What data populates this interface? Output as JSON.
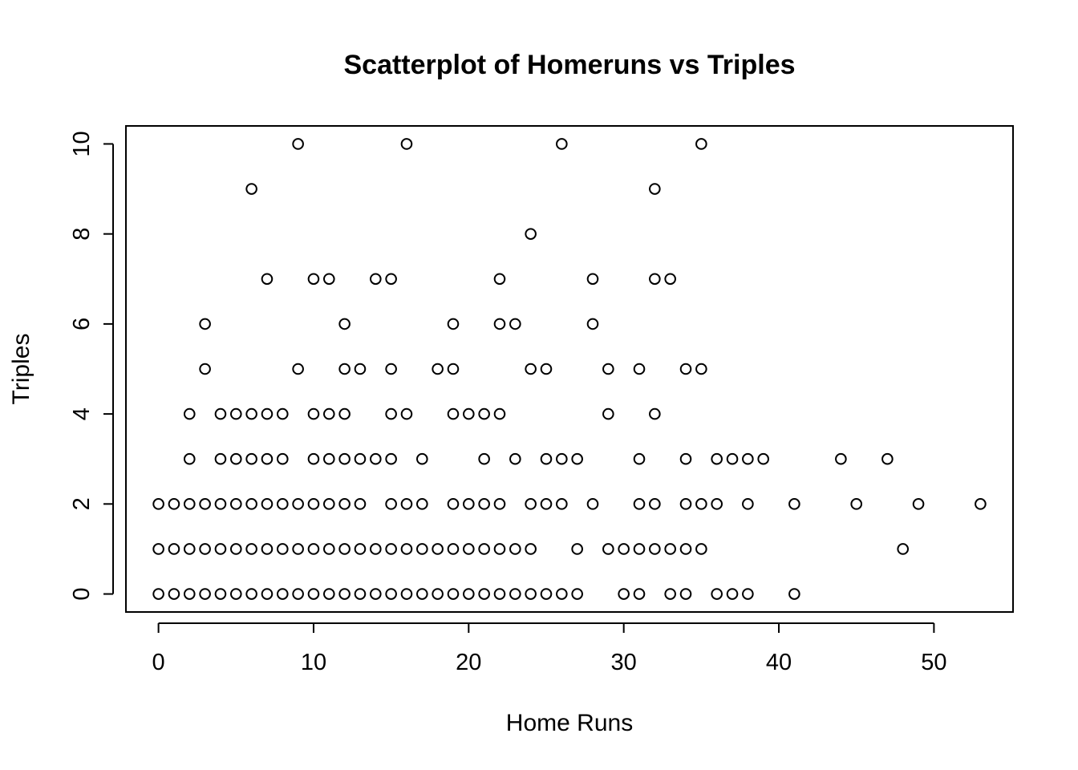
{
  "chart_data": {
    "type": "scatter",
    "title": "Scatterplot of Homeruns vs Triples",
    "xlabel": "Home Runs",
    "ylabel": "Triples",
    "xlim": [
      -2.1,
      55.1
    ],
    "ylim": [
      -0.4,
      10.4
    ],
    "xticks": [
      0,
      10,
      20,
      30,
      40,
      50
    ],
    "yticks": [
      0,
      2,
      4,
      6,
      8,
      10
    ],
    "grid": false,
    "legend": "none",
    "marker": "open-circle",
    "series": [
      {
        "points": [
          [
            0,
            0
          ],
          [
            1,
            0
          ],
          [
            2,
            0
          ],
          [
            3,
            0
          ],
          [
            4,
            0
          ],
          [
            5,
            0
          ],
          [
            6,
            0
          ],
          [
            7,
            0
          ],
          [
            8,
            0
          ],
          [
            9,
            0
          ],
          [
            10,
            0
          ],
          [
            11,
            0
          ],
          [
            12,
            0
          ],
          [
            13,
            0
          ],
          [
            14,
            0
          ],
          [
            15,
            0
          ],
          [
            16,
            0
          ],
          [
            17,
            0
          ],
          [
            18,
            0
          ],
          [
            19,
            0
          ],
          [
            20,
            0
          ],
          [
            21,
            0
          ],
          [
            22,
            0
          ],
          [
            23,
            0
          ],
          [
            24,
            0
          ],
          [
            25,
            0
          ],
          [
            26,
            0
          ],
          [
            27,
            0
          ],
          [
            30,
            0
          ],
          [
            31,
            0
          ],
          [
            33,
            0
          ],
          [
            34,
            0
          ],
          [
            36,
            0
          ],
          [
            37,
            0
          ],
          [
            38,
            0
          ],
          [
            41,
            0
          ],
          [
            0,
            1
          ],
          [
            1,
            1
          ],
          [
            2,
            1
          ],
          [
            3,
            1
          ],
          [
            4,
            1
          ],
          [
            5,
            1
          ],
          [
            6,
            1
          ],
          [
            7,
            1
          ],
          [
            8,
            1
          ],
          [
            9,
            1
          ],
          [
            10,
            1
          ],
          [
            11,
            1
          ],
          [
            12,
            1
          ],
          [
            13,
            1
          ],
          [
            14,
            1
          ],
          [
            15,
            1
          ],
          [
            16,
            1
          ],
          [
            17,
            1
          ],
          [
            18,
            1
          ],
          [
            19,
            1
          ],
          [
            20,
            1
          ],
          [
            21,
            1
          ],
          [
            22,
            1
          ],
          [
            23,
            1
          ],
          [
            24,
            1
          ],
          [
            27,
            1
          ],
          [
            29,
            1
          ],
          [
            30,
            1
          ],
          [
            31,
            1
          ],
          [
            32,
            1
          ],
          [
            33,
            1
          ],
          [
            34,
            1
          ],
          [
            35,
            1
          ],
          [
            48,
            1
          ],
          [
            0,
            2
          ],
          [
            1,
            2
          ],
          [
            2,
            2
          ],
          [
            3,
            2
          ],
          [
            4,
            2
          ],
          [
            5,
            2
          ],
          [
            6,
            2
          ],
          [
            7,
            2
          ],
          [
            8,
            2
          ],
          [
            9,
            2
          ],
          [
            10,
            2
          ],
          [
            11,
            2
          ],
          [
            12,
            2
          ],
          [
            13,
            2
          ],
          [
            15,
            2
          ],
          [
            16,
            2
          ],
          [
            17,
            2
          ],
          [
            19,
            2
          ],
          [
            20,
            2
          ],
          [
            21,
            2
          ],
          [
            22,
            2
          ],
          [
            24,
            2
          ],
          [
            25,
            2
          ],
          [
            26,
            2
          ],
          [
            28,
            2
          ],
          [
            31,
            2
          ],
          [
            32,
            2
          ],
          [
            34,
            2
          ],
          [
            35,
            2
          ],
          [
            36,
            2
          ],
          [
            38,
            2
          ],
          [
            41,
            2
          ],
          [
            45,
            2
          ],
          [
            49,
            2
          ],
          [
            53,
            2
          ],
          [
            2,
            3
          ],
          [
            4,
            3
          ],
          [
            5,
            3
          ],
          [
            6,
            3
          ],
          [
            7,
            3
          ],
          [
            8,
            3
          ],
          [
            10,
            3
          ],
          [
            11,
            3
          ],
          [
            12,
            3
          ],
          [
            13,
            3
          ],
          [
            14,
            3
          ],
          [
            15,
            3
          ],
          [
            17,
            3
          ],
          [
            21,
            3
          ],
          [
            23,
            3
          ],
          [
            25,
            3
          ],
          [
            26,
            3
          ],
          [
            27,
            3
          ],
          [
            31,
            3
          ],
          [
            34,
            3
          ],
          [
            36,
            3
          ],
          [
            37,
            3
          ],
          [
            38,
            3
          ],
          [
            39,
            3
          ],
          [
            44,
            3
          ],
          [
            47,
            3
          ],
          [
            2,
            4
          ],
          [
            4,
            4
          ],
          [
            5,
            4
          ],
          [
            6,
            4
          ],
          [
            7,
            4
          ],
          [
            8,
            4
          ],
          [
            10,
            4
          ],
          [
            11,
            4
          ],
          [
            12,
            4
          ],
          [
            15,
            4
          ],
          [
            16,
            4
          ],
          [
            19,
            4
          ],
          [
            20,
            4
          ],
          [
            21,
            4
          ],
          [
            22,
            4
          ],
          [
            29,
            4
          ],
          [
            32,
            4
          ],
          [
            3,
            5
          ],
          [
            9,
            5
          ],
          [
            12,
            5
          ],
          [
            13,
            5
          ],
          [
            15,
            5
          ],
          [
            18,
            5
          ],
          [
            19,
            5
          ],
          [
            24,
            5
          ],
          [
            25,
            5
          ],
          [
            29,
            5
          ],
          [
            31,
            5
          ],
          [
            34,
            5
          ],
          [
            35,
            5
          ],
          [
            3,
            6
          ],
          [
            12,
            6
          ],
          [
            19,
            6
          ],
          [
            22,
            6
          ],
          [
            23,
            6
          ],
          [
            28,
            6
          ],
          [
            7,
            7
          ],
          [
            10,
            7
          ],
          [
            11,
            7
          ],
          [
            14,
            7
          ],
          [
            15,
            7
          ],
          [
            22,
            7
          ],
          [
            28,
            7
          ],
          [
            32,
            7
          ],
          [
            33,
            7
          ],
          [
            24,
            8
          ],
          [
            6,
            9
          ],
          [
            32,
            9
          ],
          [
            9,
            10
          ],
          [
            16,
            10
          ],
          [
            26,
            10
          ],
          [
            35,
            10
          ]
        ]
      }
    ]
  }
}
